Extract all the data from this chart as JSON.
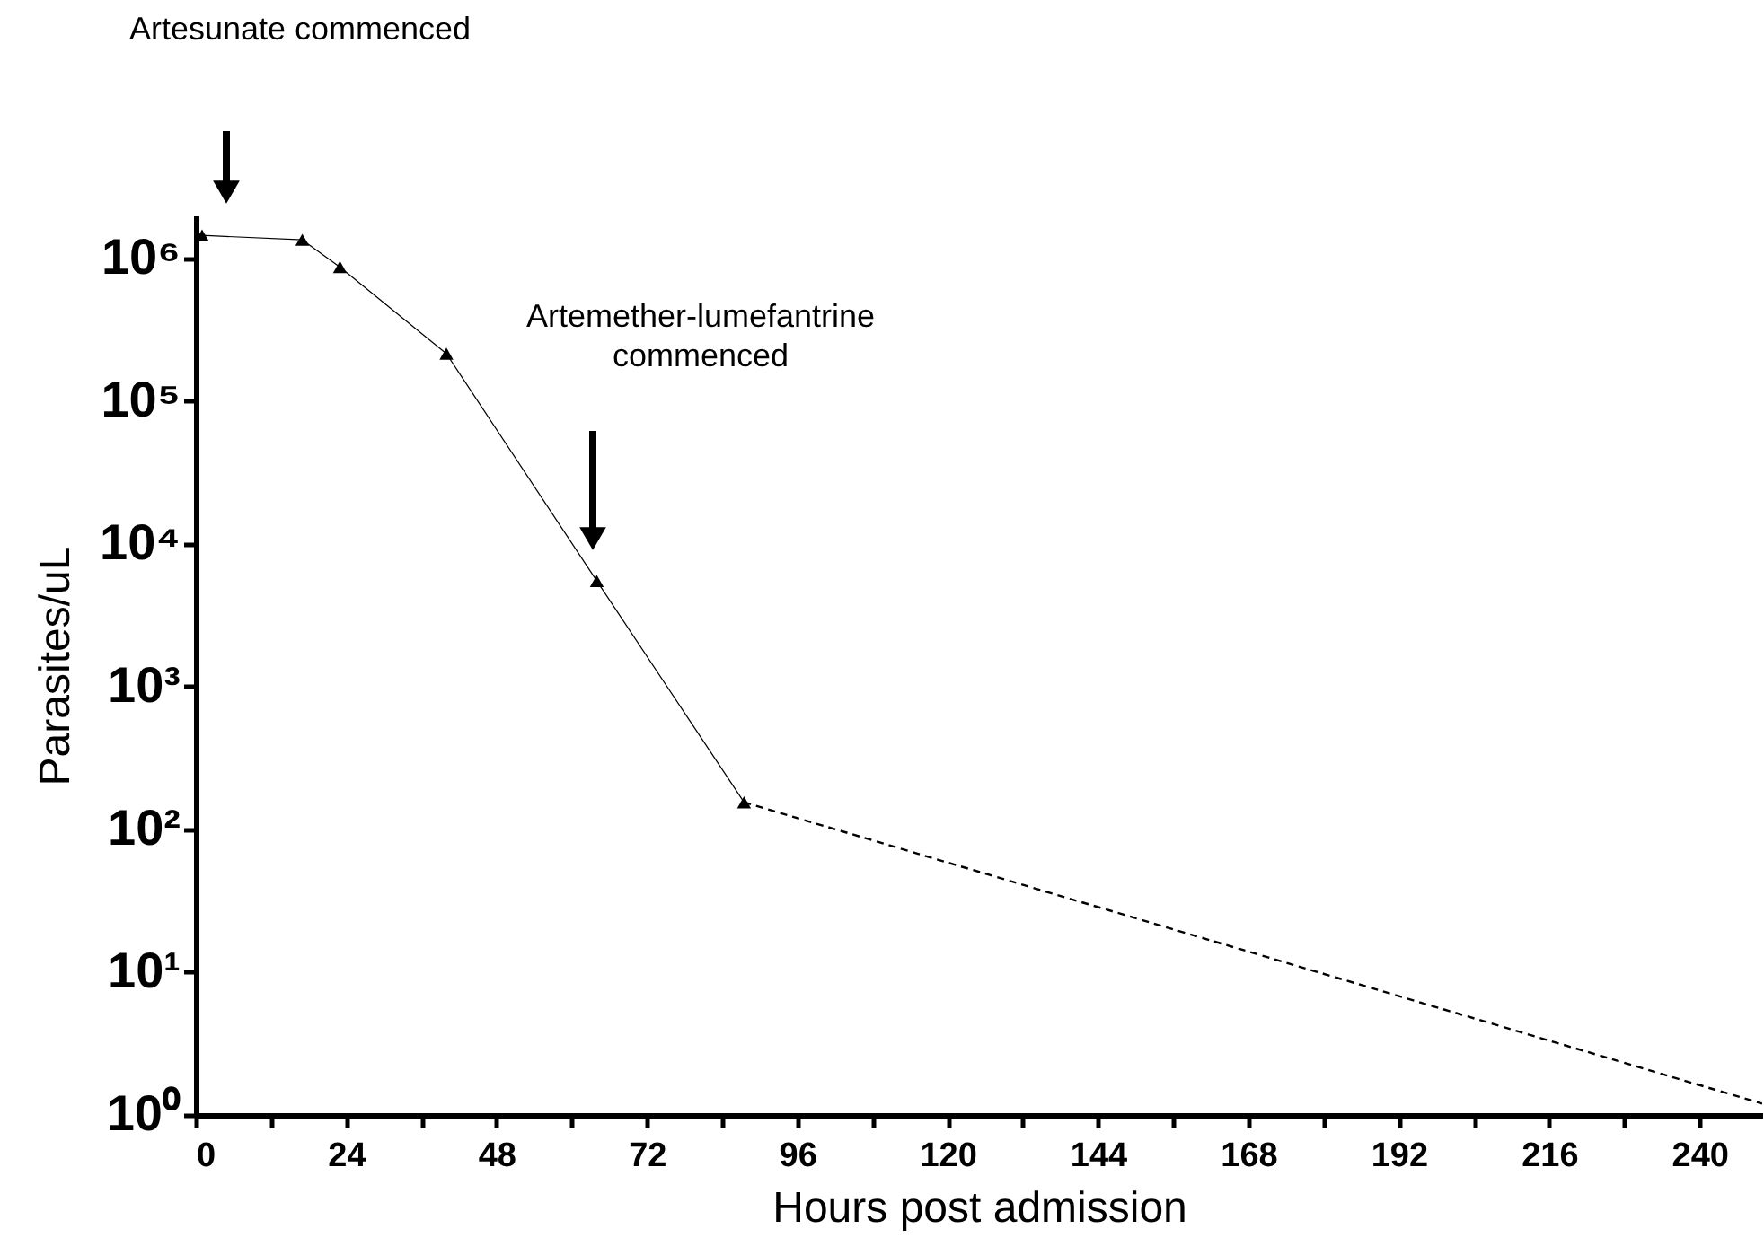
{
  "chart_data": {
    "type": "line",
    "xlabel": "Hours post admission",
    "ylabel": "Parasites/uL",
    "log": "y",
    "xlim": [
      0,
      250
    ],
    "ylim": [
      1,
      2000000
    ],
    "xticks": [
      0,
      {
        "value": 12,
        "label": null
      },
      24,
      {
        "value": 36,
        "label": null
      },
      48,
      {
        "value": 60,
        "label": null
      },
      72,
      {
        "value": 84,
        "label": null
      },
      96,
      {
        "value": 108,
        "label": null
      },
      120,
      {
        "value": 132,
        "label": null
      },
      144,
      {
        "value": 156,
        "label": null
      },
      168,
      {
        "value": 180,
        "label": null
      },
      192,
      {
        "value": 204,
        "label": null
      },
      216,
      {
        "value": 228,
        "label": null
      },
      240
    ],
    "yticks": [
      {
        "value": 1,
        "label": "10⁰"
      },
      {
        "value": 10,
        "label": "10¹"
      },
      {
        "value": 100,
        "label": "10²"
      },
      {
        "value": 1000,
        "label": "10³"
      },
      {
        "value": 10000,
        "label": "10⁴"
      },
      {
        "value": 100000,
        "label": "10⁵"
      },
      {
        "value": 1000000,
        "label": "10⁶"
      }
    ],
    "series": [
      {
        "color": "#000000",
        "x": [
          1,
          17,
          23,
          40,
          64,
          87.5
        ],
        "values": [
          1450000,
          1350000,
          870000,
          215000,
          5500,
          155
        ],
        "line_style": "solid",
        "marker": "triangle"
      },
      {
        "color": "#000000",
        "x": [
          87.5,
          250
        ],
        "values": [
          155,
          1.2
        ],
        "line_style": "dashed",
        "marker": "none"
      }
    ],
    "annotations": [
      "Artesunate commenced",
      "Artemether-lumefantrine\n commenced"
    ]
  }
}
